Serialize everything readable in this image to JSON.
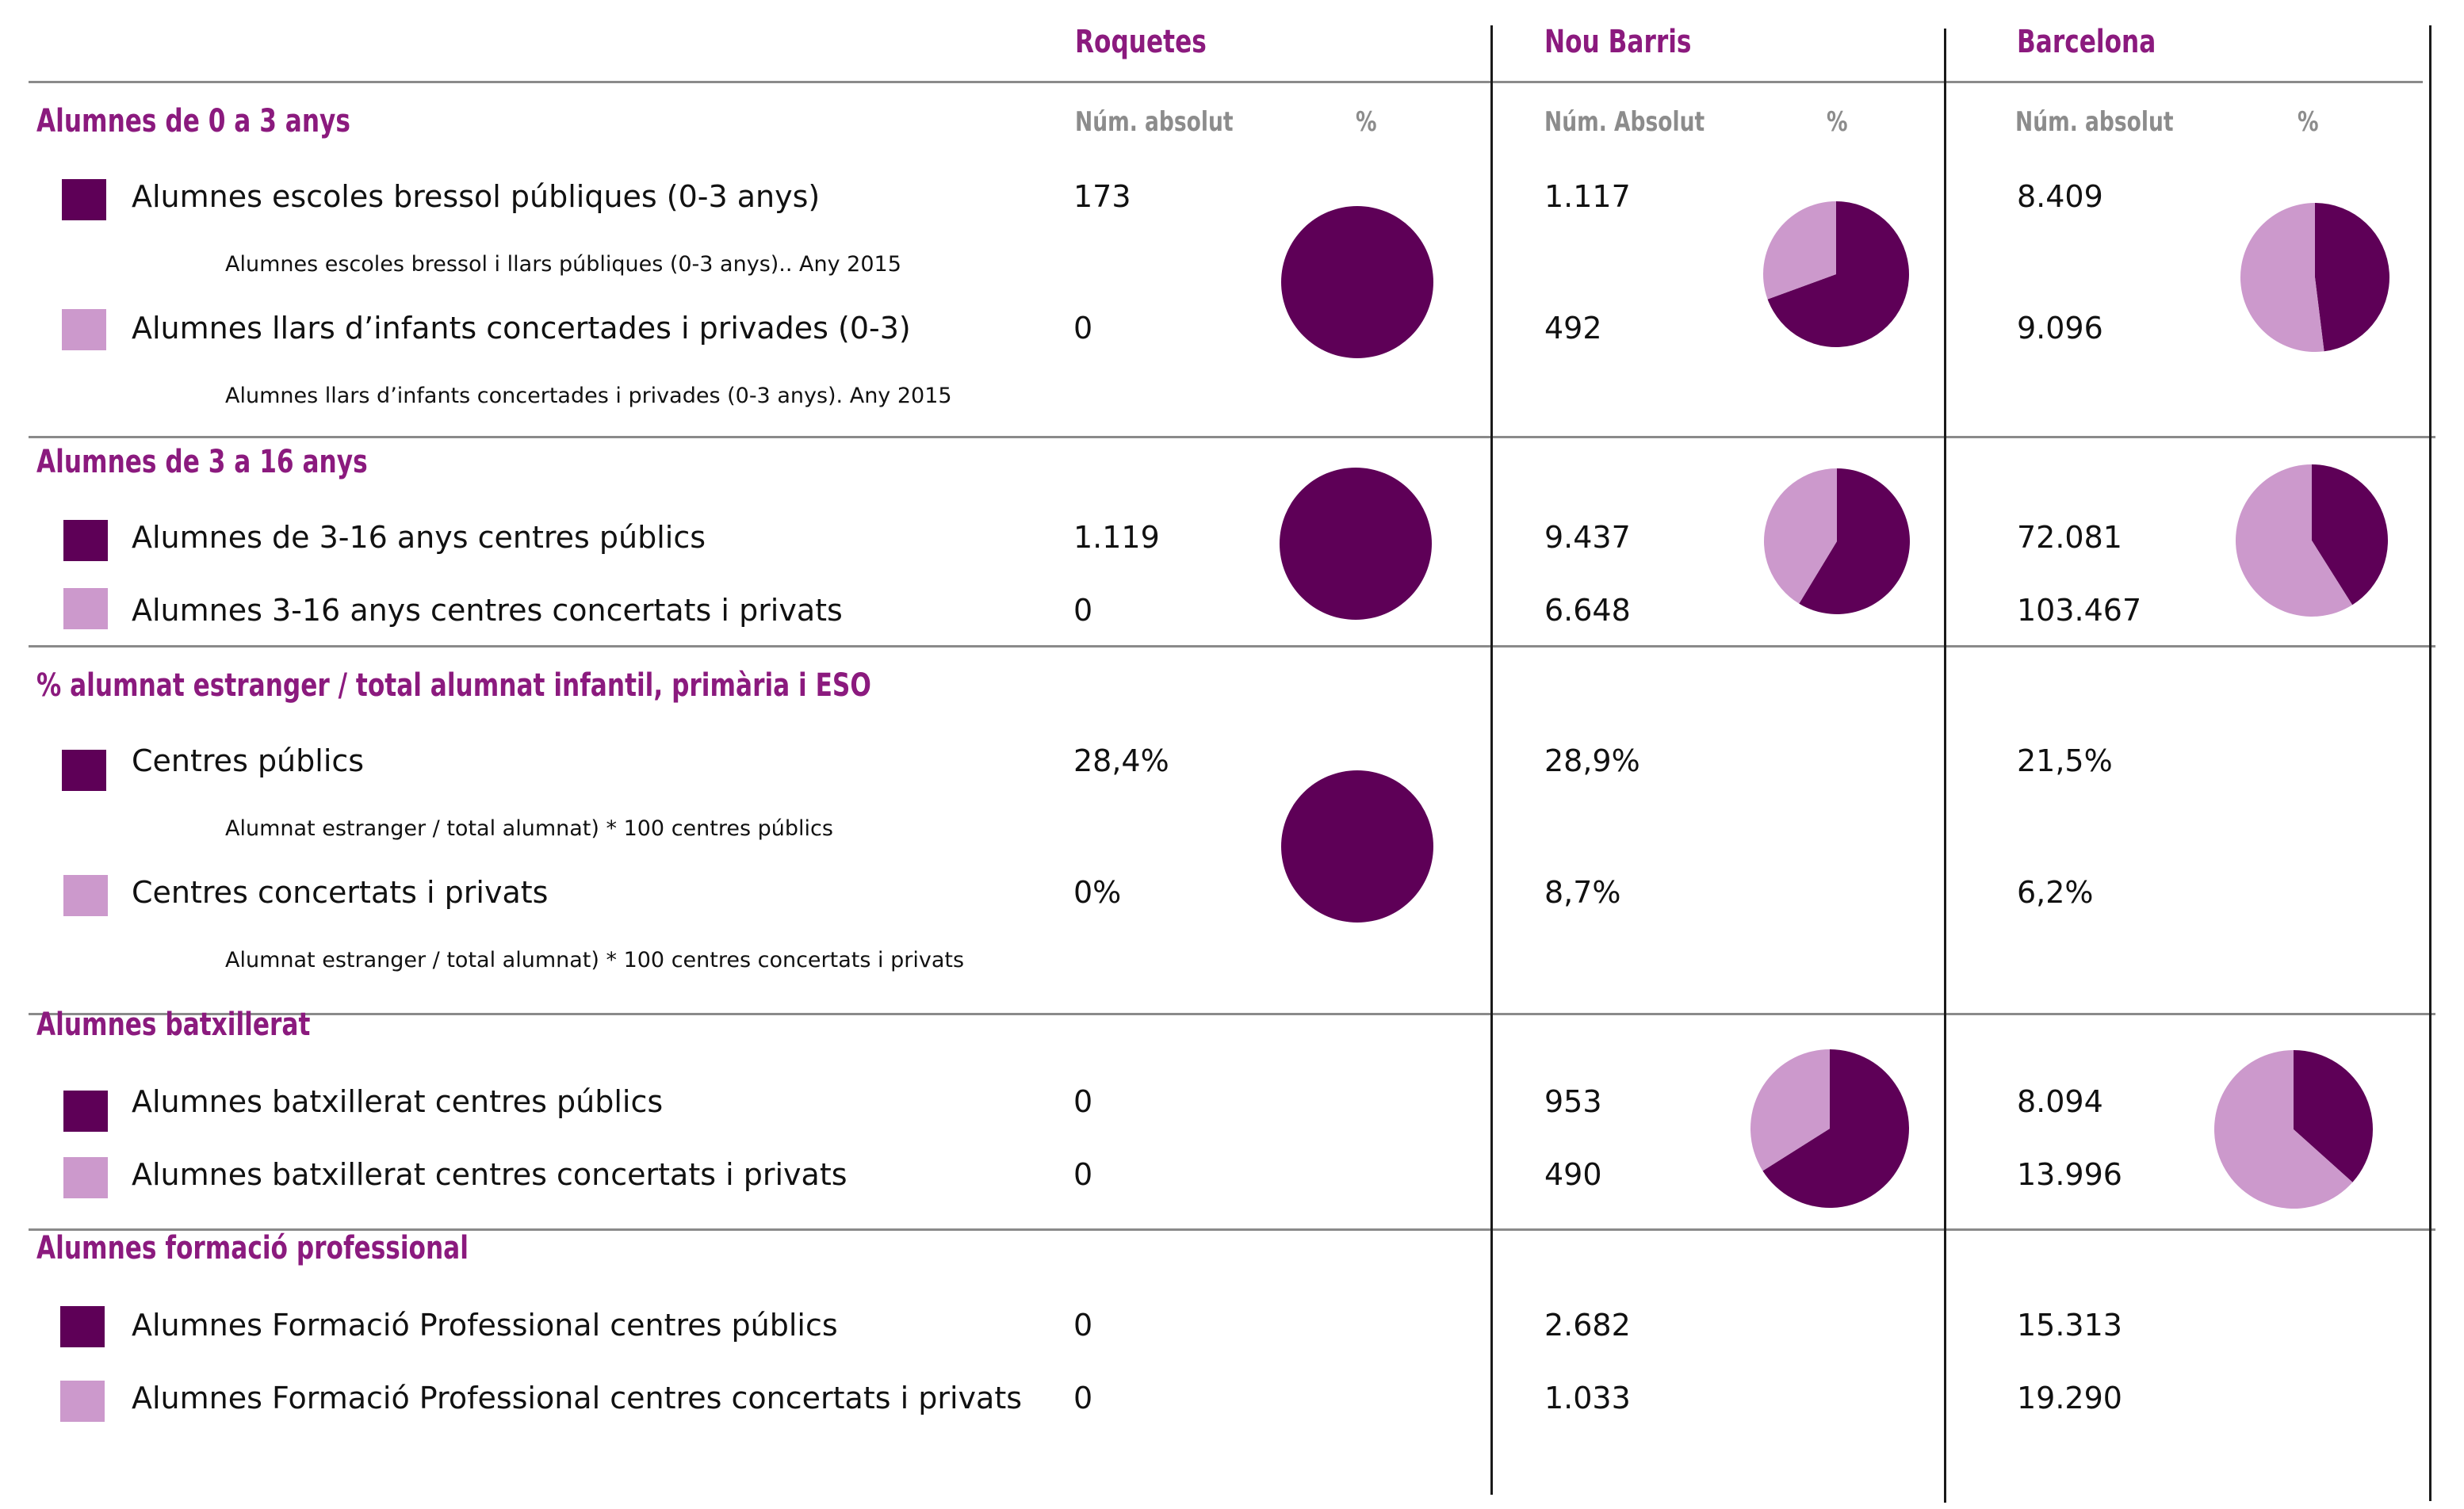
{
  "colors": {
    "dark": "#5e0057",
    "light": "#cc99cc",
    "title": "#8b1a7e",
    "subhead": "#8c8c8c"
  },
  "columns": {
    "roquetes": "Roquetes",
    "noubarris": "Nou Barris",
    "barcelona": "Barcelona"
  },
  "subheaders": {
    "roquetes_abs": "Núm. absolut",
    "noubarris_abs": "Núm. Absolut",
    "barcelona_abs": "Núm. absolut",
    "pct": "%"
  },
  "sections": [
    {
      "title": "Alumnes de 0 a 3 anys",
      "rows": [
        {
          "label": "Alumnes escoles bressol públiques (0-3 anys)",
          "note": "Alumnes escoles bressol i llars públiques (0-3 anys).. Any 2015",
          "roquetes": "173",
          "noubarris": "1.117",
          "barcelona": "8.409"
        },
        {
          "label": "Alumnes llars d’infants concertades i privades (0-3)",
          "note": "Alumnes llars d’infants concertades i privades (0-3 anys). Any 2015",
          "roquetes": "0",
          "noubarris": "492",
          "barcelona": "9.096"
        }
      ]
    },
    {
      "title": "Alumnes de 3 a 16 anys",
      "rows": [
        {
          "label": "Alumnes de 3-16 anys centres públics",
          "roquetes": "1.119",
          "noubarris": "9.437",
          "barcelona": "72.081"
        },
        {
          "label": "Alumnes 3-16 anys centres concertats i privats",
          "roquetes": "0",
          "noubarris": "6.648",
          "barcelona": "103.467"
        }
      ]
    },
    {
      "title": "% alumnat estranger / total alumnat infantil, primària i ESO",
      "rows": [
        {
          "label": "Centres públics",
          "note": "Alumnat estranger / total alumnat) * 100 centres públics",
          "roquetes": "28,4%",
          "noubarris": "28,9%",
          "barcelona": "21,5%"
        },
        {
          "label": "Centres concertats i privats",
          "note": "Alumnat estranger / total alumnat) * 100 centres concertats i privats",
          "roquetes": "0%",
          "noubarris": "8,7%",
          "barcelona": "6,2%"
        }
      ]
    },
    {
      "title": "Alumnes batxillerat",
      "rows": [
        {
          "label": "Alumnes batxillerat centres públics",
          "roquetes": "0",
          "noubarris": "953",
          "barcelona": "8.094"
        },
        {
          "label": "Alumnes batxillerat centres concertats i privats",
          "roquetes": "0",
          "noubarris": "490",
          "barcelona": "13.996"
        }
      ]
    },
    {
      "title": "Alumnes formació professional",
      "rows": [
        {
          "label": "Alumnes Formació Professional centres públics",
          "roquetes": "0",
          "noubarris": "2.682",
          "barcelona": "15.313"
        },
        {
          "label": "Alumnes Formació Professional centres concertats i privats",
          "roquetes": "0",
          "noubarris": "1.033",
          "barcelona": "19.290"
        }
      ]
    }
  ],
  "chart_data": [
    {
      "type": "pie",
      "section": "Alumnes de 0 a 3 anys",
      "column": "Roquetes",
      "values": [
        173,
        0
      ]
    },
    {
      "type": "pie",
      "section": "Alumnes de 0 a 3 anys",
      "column": "Nou Barris",
      "values": [
        1117,
        492
      ]
    },
    {
      "type": "pie",
      "section": "Alumnes de 0 a 3 anys",
      "column": "Barcelona",
      "values": [
        8409,
        9096
      ]
    },
    {
      "type": "pie",
      "section": "Alumnes de 3 a 16 anys",
      "column": "Roquetes",
      "values": [
        1119,
        0
      ]
    },
    {
      "type": "pie",
      "section": "Alumnes de 3 a 16 anys",
      "column": "Nou Barris",
      "values": [
        9437,
        6648
      ]
    },
    {
      "type": "pie",
      "section": "Alumnes de 3 a 16 anys",
      "column": "Barcelona",
      "values": [
        72081,
        103467
      ]
    },
    {
      "type": "pie",
      "section": "% alumnat estranger / total alumnat infantil, primària i ESO",
      "column": "Roquetes",
      "values": [
        28.4,
        0
      ]
    },
    {
      "type": "pie",
      "section": "Alumnes batxillerat",
      "column": "Nou Barris",
      "values": [
        953,
        490
      ]
    },
    {
      "type": "pie",
      "section": "Alumnes batxillerat",
      "column": "Barcelona",
      "values": [
        8094,
        13996
      ]
    }
  ]
}
